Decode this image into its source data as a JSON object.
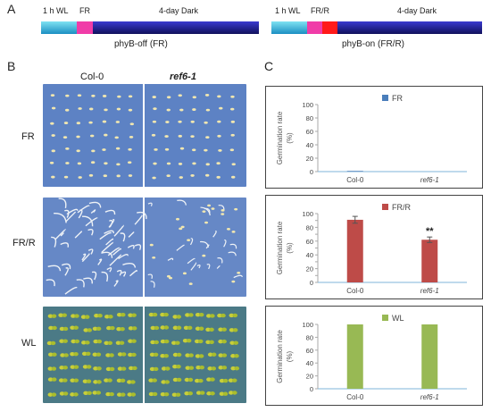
{
  "panels": {
    "A": "A",
    "B": "B",
    "C": "C"
  },
  "timeline_off": {
    "wl_label": "1 h WL",
    "fr_label": "FR",
    "dark_label": "4-day Dark",
    "caption": "phyB-off (FR)"
  },
  "timeline_on": {
    "wl_label": "1 h WL",
    "frr_label": "FR/R",
    "dark_label": "4-day Dark",
    "caption": "phyB-on (FR/R)"
  },
  "photos": {
    "col_labels": [
      "Col-0",
      "ref6-1"
    ],
    "row_labels": [
      "FR",
      "FR/R",
      "WL"
    ]
  },
  "colors": {
    "wl": "#2bb3d9",
    "fr": "#f03ca8",
    "red": "#ff1a1a",
    "dark": "#1d1d8a",
    "bar_fr": "#4a7ebb",
    "bar_frr": "#be4b48",
    "bar_wl": "#98b954"
  },
  "chart_data": [
    {
      "type": "bar",
      "categories": [
        "Col-0",
        "ref6-1"
      ],
      "series": [
        {
          "name": "FR",
          "values": [
            1,
            0
          ]
        }
      ],
      "ylabel": "Germination rate (%)",
      "ylim": [
        0,
        100
      ],
      "yticks": [
        0,
        20,
        40,
        60,
        80,
        100
      ],
      "legend": "FR"
    },
    {
      "type": "bar",
      "categories": [
        "Col-0",
        "ref6-1"
      ],
      "series": [
        {
          "name": "FR/R",
          "values": [
            91,
            62
          ],
          "errors": [
            5,
            4
          ]
        }
      ],
      "ylabel": "Germination rate (%)",
      "ylim": [
        0,
        100
      ],
      "yticks": [
        0,
        10,
        20,
        30,
        40,
        50,
        60,
        70,
        80,
        90,
        100
      ],
      "tick_labels": [
        "0",
        "20",
        "40",
        "60",
        "80",
        "100"
      ],
      "annotation": "**",
      "legend": "FR/R"
    },
    {
      "type": "bar",
      "categories": [
        "Col-0",
        "ref6-1"
      ],
      "series": [
        {
          "name": "WL",
          "values": [
            100,
            100
          ]
        }
      ],
      "ylabel": "Germination rate (%)",
      "ylim": [
        0,
        100
      ],
      "yticks": [
        0,
        20,
        40,
        60,
        80,
        100
      ],
      "legend": "WL"
    }
  ]
}
